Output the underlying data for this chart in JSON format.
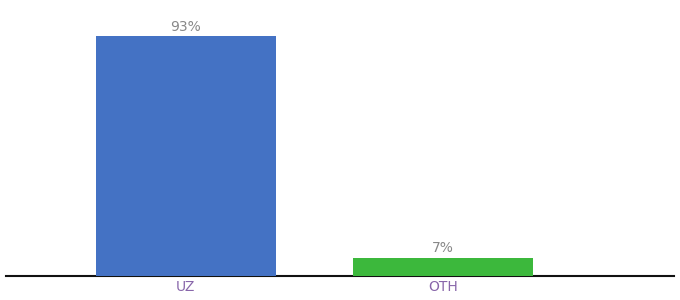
{
  "categories": [
    "UZ",
    "OTH"
  ],
  "values": [
    93,
    7
  ],
  "bar_colors": [
    "#4472c4",
    "#3cb83c"
  ],
  "value_labels": [
    "93%",
    "7%"
  ],
  "background_color": "#ffffff",
  "ylim": [
    0,
    105
  ],
  "label_fontsize": 10,
  "tick_fontsize": 10,
  "x_positions": [
    1,
    2
  ],
  "bar_width": 0.7,
  "xlim": [
    0.3,
    2.9
  ],
  "tick_color": "#8866aa",
  "label_color": "#888888",
  "spine_color": "#111111"
}
